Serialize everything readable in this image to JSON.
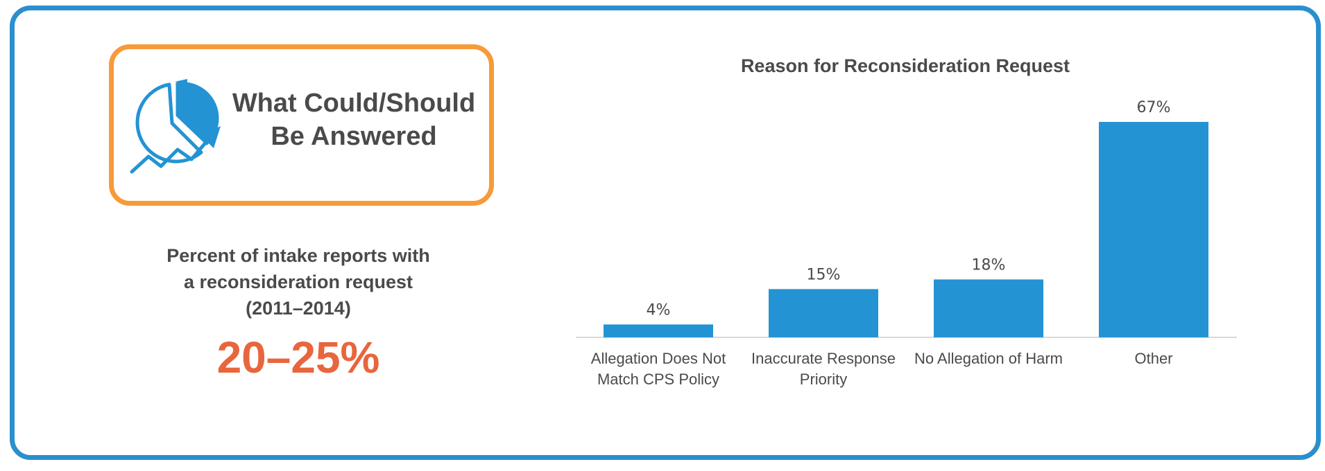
{
  "callout": {
    "title_line1": "What Could/Should",
    "title_line2": "Be Answered",
    "icon": "pie-chart-trend-icon"
  },
  "stat": {
    "label_line1": "Percent of intake reports with",
    "label_line2": "a reconsideration request",
    "label_line3": "(2011–2014)",
    "value": "20–25%"
  },
  "colors": {
    "frame": "#2a8fce",
    "callout_border": "#f79a38",
    "bar": "#2493d3",
    "stat_value": "#e8663d",
    "text": "#4a4a4a"
  },
  "chart_data": {
    "type": "bar",
    "title": "Reason for Reconsideration Request",
    "categories": [
      [
        "Allegation Does Not",
        "Match CPS Policy"
      ],
      [
        "Inaccurate Response",
        "Priority"
      ],
      [
        "No Allegation of Harm"
      ],
      [
        "Other"
      ]
    ],
    "values": [
      4,
      15,
      18,
      67
    ],
    "value_labels": [
      "4%",
      "15%",
      "18%",
      "67%"
    ],
    "unit": "%",
    "ylim": [
      0,
      67
    ],
    "xlabel": "",
    "ylabel": "",
    "grid": false,
    "legend": "none"
  }
}
